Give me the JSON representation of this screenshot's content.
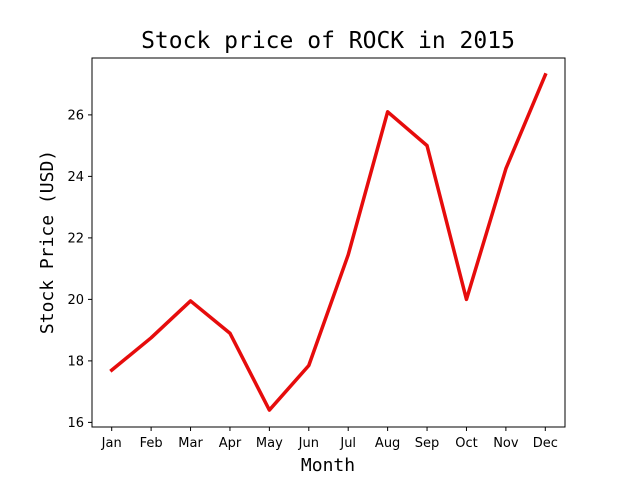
{
  "chart_data": {
    "type": "line",
    "title": "Stock price of ROCK in 2015",
    "xlabel": "Month",
    "ylabel": "Stock Price (USD)",
    "categories": [
      "Jan",
      "Feb",
      "Mar",
      "Apr",
      "May",
      "Jun",
      "Jul",
      "Aug",
      "Sep",
      "Oct",
      "Nov",
      "Dec"
    ],
    "series": [
      {
        "values": [
          17.7,
          18.75,
          19.95,
          18.9,
          16.4,
          17.85,
          21.45,
          26.1,
          25.0,
          20.0,
          24.25,
          27.3
        ],
        "color": "#e60c0c"
      }
    ],
    "yticks": [
      16,
      18,
      20,
      22,
      24,
      26
    ],
    "ylim": [
      15.85,
      27.85
    ],
    "grid": false,
    "legend": "none"
  }
}
